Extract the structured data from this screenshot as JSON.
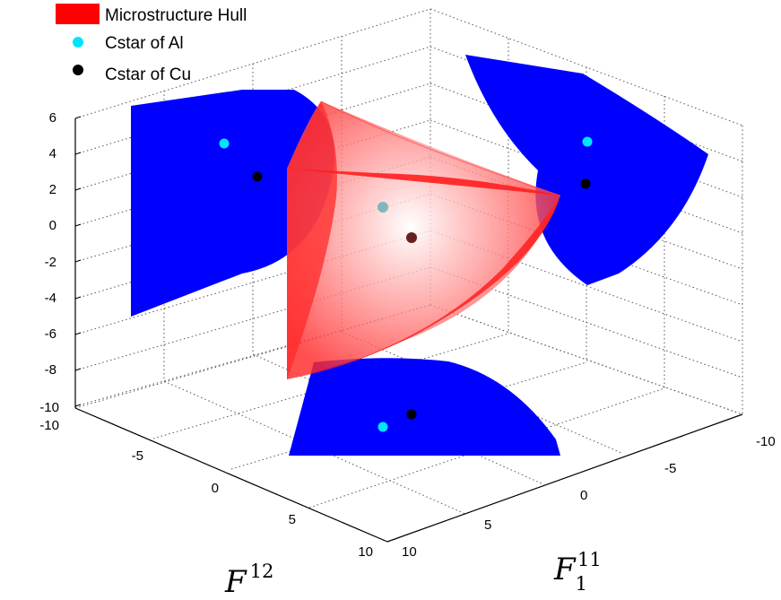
{
  "chart_data": {
    "type": "scatter",
    "subtype": "3d-surface-projection",
    "title": "",
    "legend": {
      "placement": "top-left",
      "entries": [
        {
          "label": "Microstructure Hull",
          "color": "#ff0000",
          "marker": "patch"
        },
        {
          "label": "Cstar of Al",
          "color": "#00e5ff",
          "marker": "dot"
        },
        {
          "label": "Cstar of Cu",
          "color": "#000000",
          "marker": "dot"
        }
      ]
    },
    "axes": {
      "x": {
        "label_base": "F",
        "label_sub": "1",
        "label_sup": "11",
        "ticks": [
          "-10",
          "-5",
          "0",
          "5",
          "10"
        ]
      },
      "y": {
        "label_base": "F",
        "label_sup": "12",
        "ticks": [
          "-10",
          "-5",
          "0",
          "5",
          "10"
        ]
      },
      "z": {
        "label": "",
        "ticks": [
          "6",
          "4",
          "2",
          "0",
          "-2",
          "-4",
          "-6",
          "-8",
          "-10"
        ]
      }
    },
    "grid": true,
    "series": [
      {
        "name": "Cstar of Al",
        "color": "#00e5ff",
        "points": [
          {
            "x": -1.3,
            "y": 0.0,
            "z": 1.1
          }
        ]
      },
      {
        "name": "Cstar of Cu",
        "color": "#000000",
        "points": [
          {
            "x": 0.4,
            "y": 0.5,
            "z": -0.7
          }
        ]
      }
    ],
    "projection_colors": {
      "hull": "#ff2222",
      "projection": "#0000ff"
    }
  }
}
